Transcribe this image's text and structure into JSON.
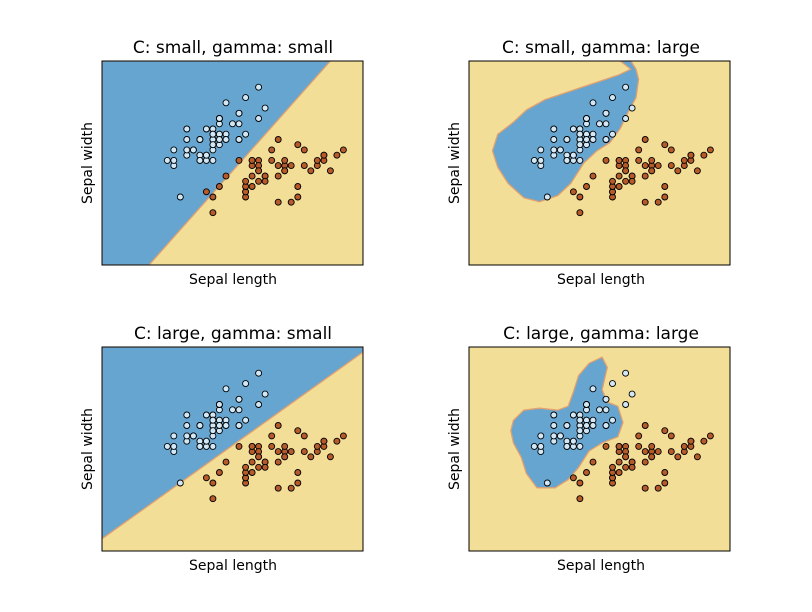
{
  "colors": {
    "region_a": "#66A5D0",
    "region_b": "#F2DE96",
    "boundary": "#E0A070",
    "class_a_point": "#D2E8F6",
    "class_b_point": "#B65A2A",
    "point_edge": "#000000"
  },
  "points": {
    "class_a": [
      [
        5.1,
        3.5
      ],
      [
        4.9,
        3.0
      ],
      [
        4.7,
        3.2
      ],
      [
        4.6,
        3.1
      ],
      [
        5.0,
        3.6
      ],
      [
        5.4,
        3.9
      ],
      [
        4.6,
        3.4
      ],
      [
        5.0,
        3.4
      ],
      [
        4.4,
        2.9
      ],
      [
        4.9,
        3.1
      ],
      [
        5.4,
        3.7
      ],
      [
        4.8,
        3.4
      ],
      [
        4.8,
        3.0
      ],
      [
        4.3,
        3.0
      ],
      [
        5.8,
        4.0
      ],
      [
        5.7,
        4.4
      ],
      [
        5.4,
        3.9
      ],
      [
        5.1,
        3.5
      ],
      [
        5.7,
        3.8
      ],
      [
        5.1,
        3.8
      ],
      [
        5.4,
        3.4
      ],
      [
        5.1,
        3.7
      ],
      [
        4.6,
        3.6
      ],
      [
        5.1,
        3.3
      ],
      [
        4.8,
        3.4
      ],
      [
        5.0,
        3.0
      ],
      [
        5.0,
        3.4
      ],
      [
        5.2,
        3.5
      ],
      [
        5.2,
        3.4
      ],
      [
        4.7,
        3.2
      ],
      [
        4.8,
        3.1
      ],
      [
        5.4,
        3.4
      ],
      [
        5.2,
        4.1
      ],
      [
        5.5,
        4.2
      ],
      [
        4.9,
        3.1
      ],
      [
        5.0,
        3.2
      ],
      [
        5.5,
        3.5
      ],
      [
        4.9,
        3.6
      ],
      [
        4.4,
        3.0
      ],
      [
        5.1,
        3.4
      ],
      [
        5.0,
        3.5
      ],
      [
        4.5,
        2.3
      ],
      [
        4.4,
        3.2
      ],
      [
        5.0,
        3.5
      ],
      [
        5.1,
        3.8
      ],
      [
        4.8,
        3.0
      ],
      [
        5.1,
        3.8
      ],
      [
        4.6,
        3.2
      ],
      [
        5.3,
        3.7
      ],
      [
        5.0,
        3.3
      ]
    ],
    "class_b": [
      [
        7.0,
        3.2
      ],
      [
        6.4,
        3.2
      ],
      [
        6.9,
        3.1
      ],
      [
        5.5,
        2.3
      ],
      [
        6.5,
        2.8
      ],
      [
        5.7,
        2.8
      ],
      [
        6.3,
        3.3
      ],
      [
        4.9,
        2.4
      ],
      [
        6.6,
        2.9
      ],
      [
        5.2,
        2.7
      ],
      [
        5.0,
        2.0
      ],
      [
        5.9,
        3.0
      ],
      [
        6.0,
        2.2
      ],
      [
        6.1,
        2.9
      ],
      [
        5.6,
        2.9
      ],
      [
        6.7,
        3.1
      ],
      [
        5.6,
        3.0
      ],
      [
        5.8,
        2.7
      ],
      [
        6.2,
        2.2
      ],
      [
        5.6,
        2.5
      ],
      [
        5.9,
        3.2
      ],
      [
        6.1,
        2.8
      ],
      [
        6.3,
        2.5
      ],
      [
        6.1,
        2.8
      ],
      [
        6.4,
        2.9
      ],
      [
        6.6,
        3.0
      ],
      [
        6.8,
        2.8
      ],
      [
        6.7,
        3.0
      ],
      [
        6.0,
        2.9
      ],
      [
        5.7,
        2.6
      ],
      [
        5.5,
        2.4
      ],
      [
        5.5,
        2.4
      ],
      [
        5.8,
        2.7
      ],
      [
        6.0,
        2.7
      ],
      [
        5.4,
        3.0
      ],
      [
        6.0,
        3.4
      ],
      [
        6.7,
        3.1
      ],
      [
        6.3,
        2.3
      ],
      [
        5.6,
        3.0
      ],
      [
        5.5,
        2.5
      ],
      [
        5.5,
        2.6
      ],
      [
        6.1,
        3.0
      ],
      [
        5.8,
        2.6
      ],
      [
        5.0,
        2.3
      ],
      [
        5.6,
        2.7
      ],
      [
        5.7,
        3.0
      ],
      [
        5.7,
        2.9
      ],
      [
        6.2,
        2.9
      ],
      [
        5.1,
        2.5
      ],
      [
        5.7,
        2.8
      ]
    ]
  },
  "chart_data": [
    {
      "type": "scatter",
      "title": "C: small, gamma: small",
      "xlabel": "Sepal length",
      "ylabel": "Sepal width",
      "xlim": [
        3.3,
        7.3
      ],
      "ylim": [
        1.0,
        4.9
      ],
      "decision_boundary": "linear",
      "series": [
        {
          "color": "#D2E8F6",
          "points_ref": "points.class_a"
        },
        {
          "color": "#B65A2A",
          "points_ref": "points.class_b"
        }
      ]
    },
    {
      "type": "scatter",
      "title": "C: small, gamma: large",
      "xlabel": "Sepal length",
      "ylabel": "Sepal width",
      "xlim": [
        3.3,
        7.3
      ],
      "ylim": [
        1.0,
        4.9
      ],
      "decision_boundary": "blob",
      "series": [
        {
          "color": "#D2E8F6",
          "points_ref": "points.class_a"
        },
        {
          "color": "#B65A2A",
          "points_ref": "points.class_b"
        }
      ]
    },
    {
      "type": "scatter",
      "title": "C: large, gamma: small",
      "xlabel": "Sepal length",
      "ylabel": "Sepal width",
      "xlim": [
        3.3,
        7.3
      ],
      "ylim": [
        1.0,
        4.9
      ],
      "decision_boundary": "linear",
      "series": [
        {
          "color": "#D2E8F6",
          "points_ref": "points.class_a"
        },
        {
          "color": "#B65A2A",
          "points_ref": "points.class_b"
        }
      ]
    },
    {
      "type": "scatter",
      "title": "C: large, gamma: large",
      "xlabel": "Sepal length",
      "ylabel": "Sepal width",
      "xlim": [
        3.3,
        7.3
      ],
      "ylim": [
        1.0,
        4.9
      ],
      "decision_boundary": "blob",
      "series": [
        {
          "color": "#D2E8F6",
          "points_ref": "points.class_a"
        },
        {
          "color": "#B65A2A",
          "points_ref": "points.class_b"
        }
      ]
    }
  ]
}
